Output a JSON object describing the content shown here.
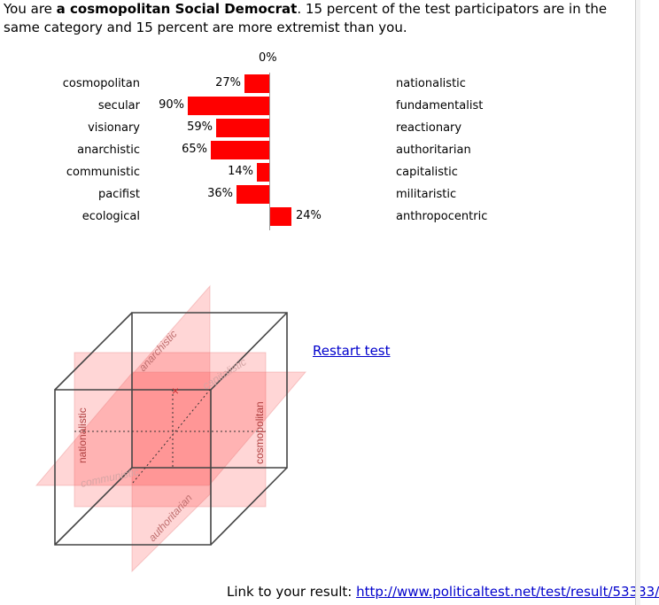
{
  "intro": {
    "prefix": "You are ",
    "category": "a cosmopolitan Social Democrat",
    "suffix": ". 15 percent of the test participators are in the same category and 15 percent are more extremist than you."
  },
  "chart_data": {
    "type": "bar",
    "zero_label": "0%",
    "rows": [
      {
        "left": "cosmopolitan",
        "right": "nationalistic",
        "value": 27,
        "label": "27%",
        "direction": "left"
      },
      {
        "left": "secular",
        "right": "fundamentalist",
        "value": 90,
        "label": "90%",
        "direction": "left"
      },
      {
        "left": "visionary",
        "right": "reactionary",
        "value": 59,
        "label": "59%",
        "direction": "left"
      },
      {
        "left": "anarchistic",
        "right": "authoritarian",
        "value": 65,
        "label": "65%",
        "direction": "left"
      },
      {
        "left": "communistic",
        "right": "capitalistic",
        "value": 14,
        "label": "14%",
        "direction": "left"
      },
      {
        "left": "pacifist",
        "right": "militaristic",
        "value": 36,
        "label": "36%",
        "direction": "left"
      },
      {
        "left": "ecological",
        "right": "anthropocentric",
        "value": 24,
        "label": "24%",
        "direction": "right"
      }
    ],
    "bar_color": "#ff0000"
  },
  "cube": {
    "labels": {
      "anarchistic": "anarchistic",
      "capitalistic": "capitalistic",
      "nationalistic": "nationalistic",
      "cosmopolitan": "cosmopolitan",
      "communistic": "communistic",
      "authoritarian": "authoritarian"
    },
    "marker": "×"
  },
  "restart": {
    "label": "Restart test"
  },
  "footer": {
    "label": "Link to your result: ",
    "url": "http://www.politicaltest.net/test/result/53333/"
  }
}
